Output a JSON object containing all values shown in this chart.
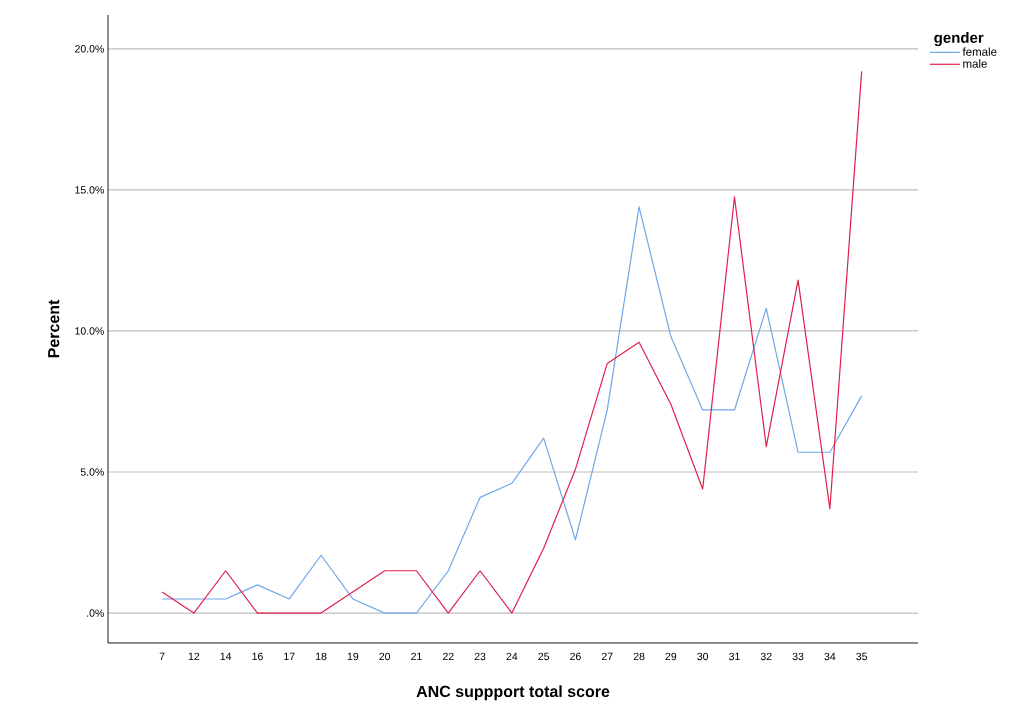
{
  "chart_data": {
    "type": "line",
    "xlabel": "ANC suppport total score",
    "ylabel": "Percent",
    "legend_title": "gender",
    "categories": [
      "7",
      "12",
      "14",
      "16",
      "17",
      "18",
      "19",
      "20",
      "21",
      "22",
      "23",
      "24",
      "25",
      "26",
      "27",
      "28",
      "29",
      "30",
      "31",
      "32",
      "33",
      "34",
      "35"
    ],
    "series": [
      {
        "name": "female",
        "color": "#6fa8ea",
        "values": [
          0.5,
          0.5,
          0.5,
          1.0,
          0.5,
          2.05,
          0.5,
          0,
          0,
          1.5,
          4.1,
          4.6,
          6.2,
          2.6,
          7.2,
          14.4,
          9.8,
          7.2,
          7.2,
          10.8,
          5.7,
          5.7,
          7.7
        ]
      },
      {
        "name": "male",
        "color": "#e0204a",
        "values": [
          0.75,
          0,
          1.5,
          0,
          0,
          0,
          0.75,
          1.5,
          1.5,
          0,
          1.5,
          0,
          2.3,
          5.1,
          8.85,
          9.6,
          7.4,
          4.4,
          14.75,
          5.9,
          11.8,
          3.7,
          19.2
        ]
      }
    ],
    "ylim": [
      -1.06,
      21.2
    ],
    "yticks": [
      {
        "value": 0,
        "label": ".0%"
      },
      {
        "value": 5,
        "label": "5.0%"
      },
      {
        "value": 10,
        "label": "10.0%"
      },
      {
        "value": 15,
        "label": "15.0%"
      },
      {
        "value": 20,
        "label": "20.0%"
      }
    ],
    "grid": "y",
    "legend": "top right",
    "marker": "none",
    "line_style": "solid"
  }
}
